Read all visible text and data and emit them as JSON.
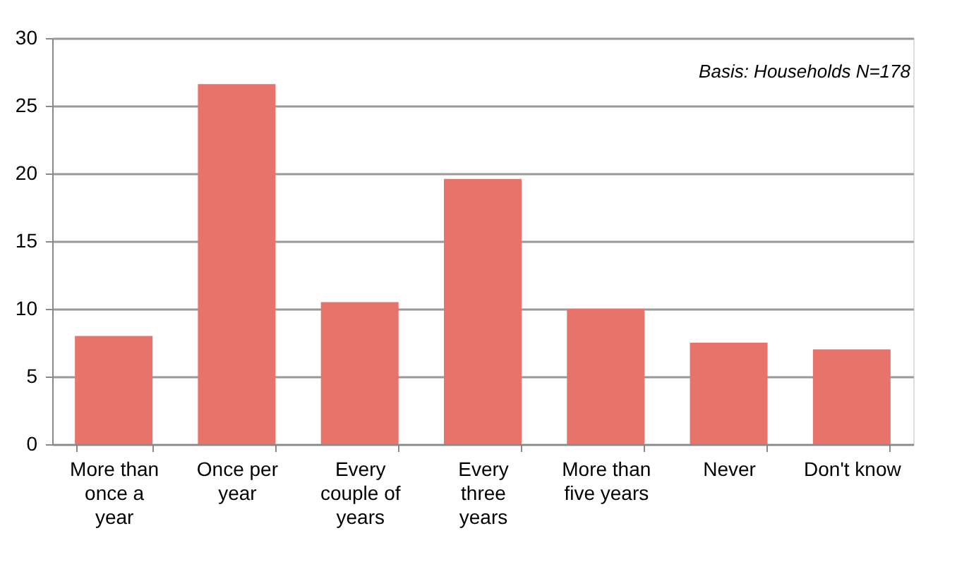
{
  "chart_data": {
    "type": "bar",
    "categories": [
      "More than once a year",
      "Once per year",
      "Every couple of years",
      "Every three years",
      "More than five years",
      "Never",
      "Don't know"
    ],
    "values": [
      8.0,
      26.6,
      10.5,
      19.6,
      10.0,
      7.5,
      7.0
    ],
    "color": "#e8736a",
    "ylim": [
      0,
      30
    ],
    "yticks": [
      0,
      5,
      10,
      15,
      20,
      25,
      30
    ],
    "grid": "y",
    "annotations": [
      "Basis: Households N=178"
    ]
  }
}
